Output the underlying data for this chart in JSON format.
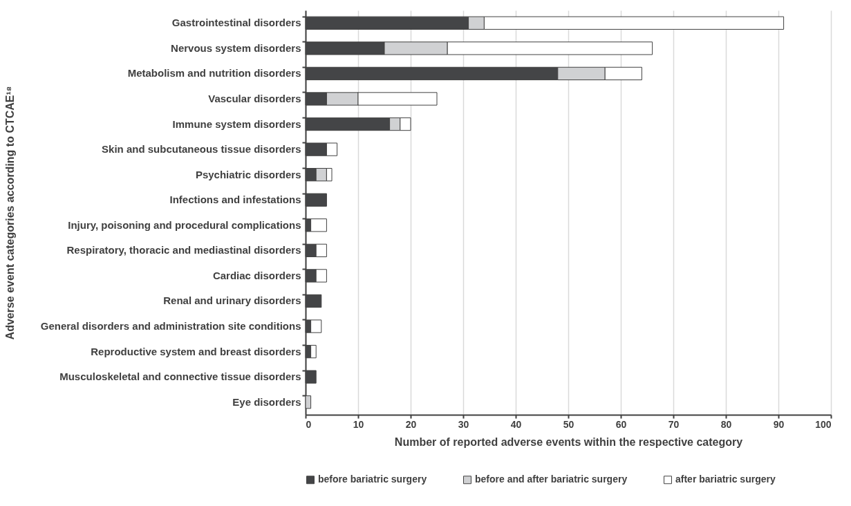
{
  "chart_data": {
    "type": "bar",
    "orientation": "horizontal",
    "stacked": true,
    "xlabel": "Number of reported adverse events within the respective category",
    "ylabel": "Adverse event categories according to CTCAE¹⁸",
    "categories": [
      "Gastrointestinal disorders",
      "Nervous system disorders",
      "Metabolism and nutrition disorders",
      "Vascular disorders",
      "Immune system disorders",
      "Skin and subcutaneous tissue disorders",
      "Psychiatric disorders",
      "Infections and infestations",
      "Injury, poisoning and procedural complications",
      "Respiratory, thoracic and mediastinal disorders",
      "Cardiac disorders",
      "Renal and urinary disorders",
      "General disorders and administration site conditions",
      "Reproductive system and breast disorders",
      "Musculoskeletal and connective tissue disorders",
      "Eye disorders"
    ],
    "series": [
      {
        "name": "before bariatric surgery",
        "color": "#444547",
        "values": [
          31,
          15,
          48,
          4,
          16,
          4,
          2,
          4,
          1,
          2,
          2,
          3,
          1,
          1,
          2,
          0
        ]
      },
      {
        "name": "before and after bariatric surgery",
        "color": "#d0d1d3",
        "values": [
          3,
          12,
          9,
          6,
          2,
          0,
          2,
          0,
          0,
          0,
          0,
          0,
          0,
          0,
          0,
          1
        ]
      },
      {
        "name": "after bariatric surgery",
        "color": "#ffffff",
        "values": [
          57,
          39,
          7,
          15,
          2,
          2,
          1,
          0,
          3,
          2,
          2,
          0,
          2,
          1,
          0,
          0
        ]
      }
    ],
    "xlim": [
      0,
      100
    ],
    "xticks": [
      0,
      10,
      20,
      30,
      40,
      50,
      60,
      70,
      80,
      90,
      100
    ],
    "grid": "x",
    "legend": "bottom"
  }
}
